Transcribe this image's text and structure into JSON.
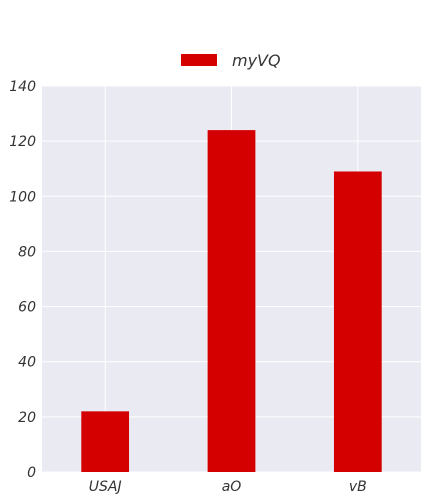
{
  "chart_data": {
    "type": "bar",
    "categories": [
      "USAJ",
      "aO",
      "vB"
    ],
    "series": [
      {
        "name": "myVQ",
        "values": [
          22,
          124,
          109
        ],
        "color": "#d40000"
      }
    ],
    "ylim": [
      0,
      140
    ],
    "yticks": [
      0,
      20,
      40,
      60,
      80,
      100,
      120,
      140
    ],
    "grid": true,
    "legend_position": "top-center",
    "background_color": "#e9eaf2",
    "grid_color": "#ffffff"
  }
}
